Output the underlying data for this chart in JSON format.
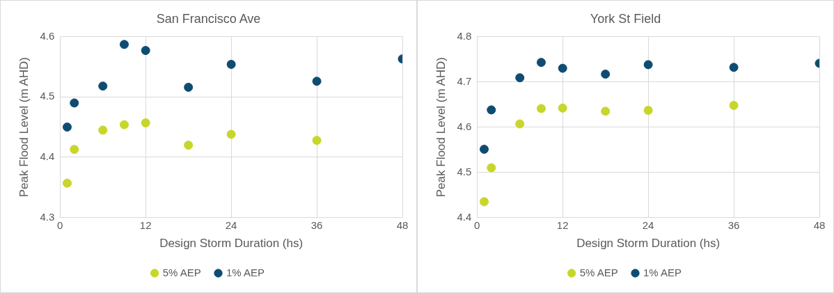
{
  "chart_data": [
    {
      "type": "scatter",
      "title": "San Francisco Ave",
      "xlabel": "Design Storm Duration (hs)",
      "ylabel": "Peak Flood Level (m AHD)",
      "xlim": [
        0,
        48
      ],
      "xticks": [
        0,
        12,
        24,
        36,
        48
      ],
      "ylim": [
        4.3,
        4.6
      ],
      "yticks": [
        4.3,
        4.4,
        4.5,
        4.6
      ],
      "grid": true,
      "legend": "bottom",
      "marker": "circle",
      "series": [
        {
          "name": "5% AEP",
          "color": "#c8d62a",
          "x": [
            1,
            2,
            6,
            9,
            12,
            18,
            24,
            36
          ],
          "values": [
            4.357,
            4.413,
            4.445,
            4.454,
            4.457,
            4.42,
            4.438,
            4.428
          ]
        },
        {
          "name": "1% AEP",
          "color": "#0f4c72",
          "x": [
            1,
            2,
            6,
            9,
            12,
            18,
            24,
            36,
            48
          ],
          "values": [
            4.45,
            4.49,
            4.518,
            4.587,
            4.577,
            4.516,
            4.554,
            4.526,
            4.563
          ]
        }
      ]
    },
    {
      "type": "scatter",
      "title": "York St Field",
      "xlabel": "Design Storm Duration (hs)",
      "ylabel": "Peak Flood Level (m AHD)",
      "xlim": [
        0,
        48
      ],
      "xticks": [
        0,
        12,
        24,
        36,
        48
      ],
      "ylim": [
        4.4,
        4.8
      ],
      "yticks": [
        4.4,
        4.5,
        4.6,
        4.7,
        4.8
      ],
      "grid": true,
      "legend": "bottom",
      "marker": "circle",
      "series": [
        {
          "name": "5% AEP",
          "color": "#c8d62a",
          "x": [
            1,
            2,
            6,
            9,
            12,
            18,
            24,
            36
          ],
          "values": [
            4.435,
            4.51,
            4.607,
            4.641,
            4.642,
            4.635,
            4.637,
            4.648
          ]
        },
        {
          "name": "1% AEP",
          "color": "#0f4c72",
          "x": [
            1,
            2,
            6,
            9,
            12,
            18,
            24,
            36,
            48
          ],
          "values": [
            4.551,
            4.638,
            4.709,
            4.743,
            4.73,
            4.717,
            4.738,
            4.732,
            4.741
          ]
        }
      ]
    }
  ]
}
